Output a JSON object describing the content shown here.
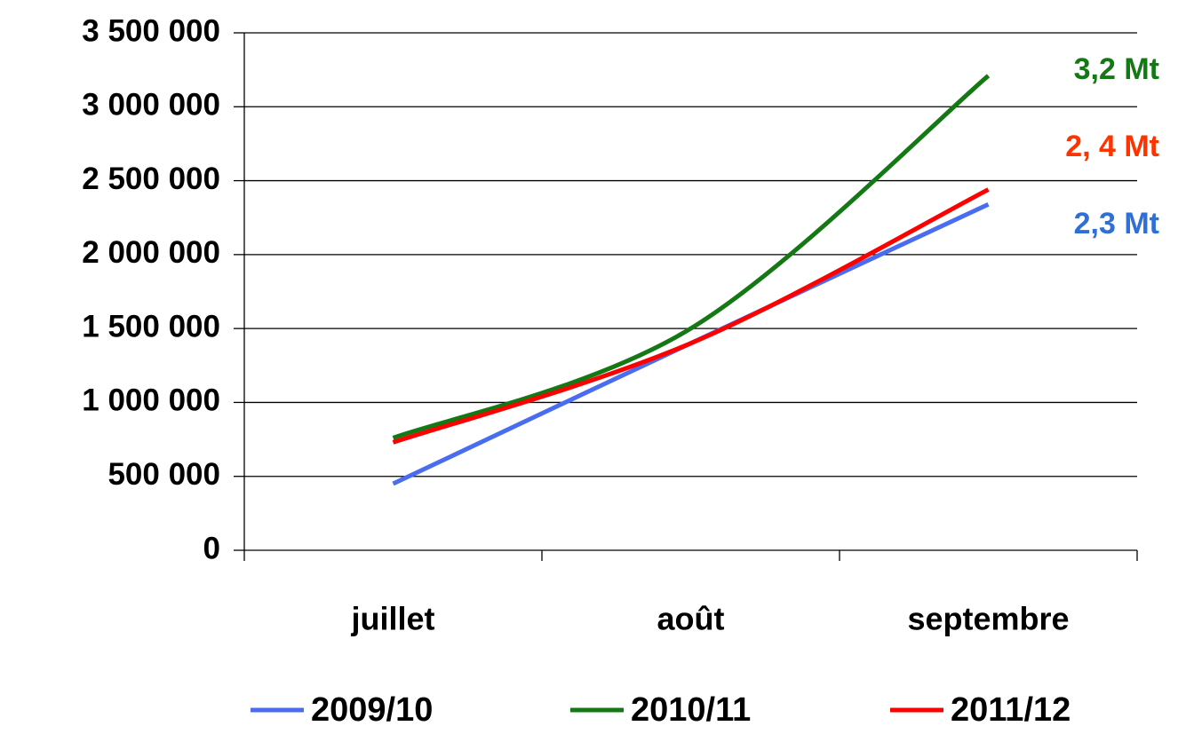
{
  "chart_data": {
    "type": "line",
    "categories": [
      "juillet",
      "août",
      "septembre"
    ],
    "series": [
      {
        "name": "2009/10",
        "color": "#4a6cf0",
        "values": [
          450000,
          1400000,
          2340000
        ]
      },
      {
        "name": "2010/11",
        "color": "#147814",
        "values": [
          760000,
          1500000,
          3210000
        ]
      },
      {
        "name": "2011/12",
        "color": "#ff0000",
        "values": [
          730000,
          1400000,
          2440000
        ]
      }
    ],
    "ylim": [
      0,
      3500000
    ],
    "yticks": [
      0,
      {
        "value": 500000,
        "label": "500 000"
      },
      {
        "value": 1000000,
        "label": "1 000 000"
      },
      {
        "value": 1500000,
        "label": "1 500 000"
      },
      {
        "value": 2000000,
        "label": "2 000 000"
      },
      {
        "value": 2500000,
        "label": "2 500 000"
      },
      {
        "value": 3000000,
        "label": "3 000 000"
      },
      {
        "value": 3500000,
        "label": "3 500 000"
      }
    ],
    "grid": true,
    "legend": "bottom",
    "annotations": [
      {
        "text": "3,2 Mt",
        "color": "#147814"
      },
      {
        "text": "2, 4 Mt",
        "color": "#ff3300"
      },
      {
        "text": "2,3 Mt",
        "color": "#2f6fd6"
      }
    ]
  }
}
